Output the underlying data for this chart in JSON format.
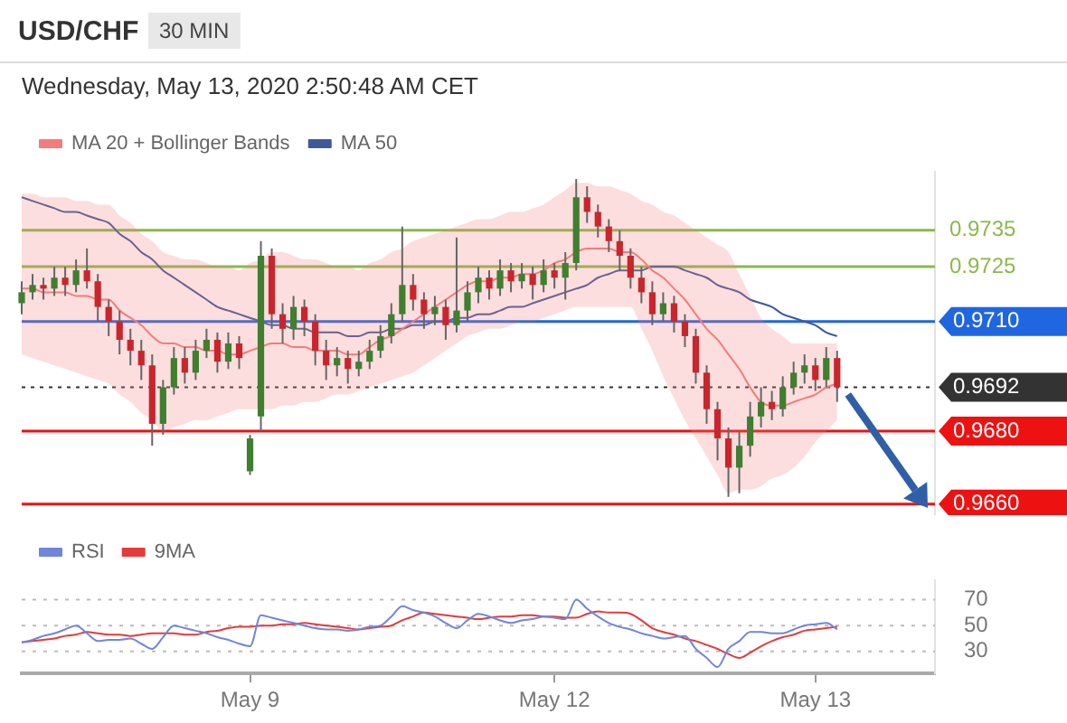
{
  "chart_data": [
    {
      "type": "candlestick",
      "title": "USD/CHF",
      "subtitle": "Wednesday, May 13, 2020 2:50:48 AM CET",
      "annotations": [
        "30 MIN"
      ],
      "categories": [
        null,
        null,
        null,
        null,
        null,
        null,
        null,
        null,
        null,
        null,
        null,
        null,
        null,
        null,
        null,
        null,
        null,
        null,
        null,
        null,
        null,
        null,
        null,
        null,
        null,
        null,
        null,
        null,
        null,
        null,
        null,
        null,
        null,
        null,
        null,
        null,
        null,
        null,
        null,
        null,
        null,
        null,
        null,
        null,
        null,
        null,
        null,
        null,
        null,
        null,
        null,
        null,
        null,
        null,
        null,
        null,
        null,
        null,
        null,
        null,
        null,
        null,
        null,
        null,
        null,
        null,
        null,
        null,
        null,
        null,
        null,
        null,
        null,
        null,
        null,
        null,
        null,
        null,
        null,
        null,
        null,
        null,
        null,
        null,
        null
      ],
      "ohlc": [
        [
          0.9715,
          0.9721,
          0.9712,
          0.9718
        ],
        [
          0.9718,
          0.9723,
          0.9716,
          0.972
        ],
        [
          0.972,
          0.9722,
          0.9716,
          0.9719
        ],
        [
          0.9719,
          0.9725,
          0.9717,
          0.9722
        ],
        [
          0.9722,
          0.9725,
          0.9717,
          0.972
        ],
        [
          0.972,
          0.9727,
          0.9718,
          0.9724
        ],
        [
          0.9724,
          0.973,
          0.9719,
          0.9721
        ],
        [
          0.9721,
          0.9723,
          0.971,
          0.9714
        ],
        [
          0.9714,
          0.9716,
          0.9706,
          0.971
        ],
        [
          0.971,
          0.9713,
          0.9701,
          0.9705
        ],
        [
          0.9705,
          0.9708,
          0.9698,
          0.9702
        ],
        [
          0.9702,
          0.9705,
          0.9694,
          0.9698
        ],
        [
          0.9698,
          0.9701,
          0.9676,
          0.9682
        ],
        [
          0.9682,
          0.9694,
          0.9679,
          0.9692
        ],
        [
          0.9692,
          0.9703,
          0.969,
          0.97
        ],
        [
          0.97,
          0.9703,
          0.9693,
          0.9696
        ],
        [
          0.9696,
          0.9705,
          0.9694,
          0.9702
        ],
        [
          0.9702,
          0.9708,
          0.97,
          0.9705
        ],
        [
          0.9705,
          0.9707,
          0.9696,
          0.9699
        ],
        [
          0.9699,
          0.9707,
          0.9697,
          0.9704
        ],
        [
          0.9704,
          0.9706,
          0.9697,
          0.97
        ],
        [
          0.9669,
          0.9679,
          0.9668,
          0.9678
        ],
        [
          0.9684,
          0.9732,
          0.968,
          0.9728
        ],
        [
          0.9728,
          0.973,
          0.9708,
          0.9712
        ],
        [
          0.9712,
          0.9715,
          0.9704,
          0.9708
        ],
        [
          0.9708,
          0.9717,
          0.9705,
          0.9714
        ],
        [
          0.9714,
          0.9716,
          0.9706,
          0.971
        ],
        [
          0.971,
          0.9712,
          0.9698,
          0.9702
        ],
        [
          0.9702,
          0.9705,
          0.9694,
          0.9698
        ],
        [
          0.9698,
          0.9703,
          0.9695,
          0.97
        ],
        [
          0.97,
          0.9702,
          0.9693,
          0.9697
        ],
        [
          0.9697,
          0.9702,
          0.9695,
          0.9699
        ],
        [
          0.9699,
          0.9705,
          0.9697,
          0.9702
        ],
        [
          0.9702,
          0.9709,
          0.97,
          0.9706
        ],
        [
          0.9706,
          0.9715,
          0.9704,
          0.9712
        ],
        [
          0.9712,
          0.9736,
          0.971,
          0.972
        ],
        [
          0.972,
          0.9723,
          0.9713,
          0.9716
        ],
        [
          0.9716,
          0.9718,
          0.9708,
          0.9712
        ],
        [
          0.9712,
          0.9717,
          0.9709,
          0.9714
        ],
        [
          0.9714,
          0.9716,
          0.9705,
          0.9709
        ],
        [
          0.9709,
          0.9733,
          0.9707,
          0.9713
        ],
        [
          0.9713,
          0.9721,
          0.971,
          0.9718
        ],
        [
          0.9718,
          0.9725,
          0.9715,
          0.9722
        ],
        [
          0.9722,
          0.9724,
          0.9716,
          0.9719
        ],
        [
          0.9719,
          0.9727,
          0.9717,
          0.9724
        ],
        [
          0.9724,
          0.9726,
          0.9718,
          0.9721
        ],
        [
          0.9721,
          0.9726,
          0.9719,
          0.9723
        ],
        [
          0.9723,
          0.9725,
          0.9716,
          0.972
        ],
        [
          0.972,
          0.9727,
          0.9718,
          0.9724
        ],
        [
          0.9724,
          0.9726,
          0.9719,
          0.9722
        ],
        [
          0.9722,
          0.9729,
          0.9716,
          0.9726
        ],
        [
          0.9726,
          0.9749,
          0.9724,
          0.9744
        ],
        [
          0.9744,
          0.9747,
          0.9737,
          0.974
        ],
        [
          0.974,
          0.9742,
          0.9733,
          0.9736
        ],
        [
          0.9736,
          0.9738,
          0.9729,
          0.9732
        ],
        [
          0.9732,
          0.9735,
          0.9724,
          0.9728
        ],
        [
          0.9728,
          0.973,
          0.9719,
          0.9722
        ],
        [
          0.9722,
          0.9725,
          0.9715,
          0.9718
        ],
        [
          0.9718,
          0.9721,
          0.9709,
          0.9712
        ],
        [
          0.9712,
          0.9718,
          0.971,
          0.9715
        ],
        [
          0.9715,
          0.9717,
          0.9707,
          0.971
        ],
        [
          0.971,
          0.9712,
          0.9703,
          0.9706
        ],
        [
          0.9706,
          0.9708,
          0.9693,
          0.9696
        ],
        [
          0.9696,
          0.9698,
          0.9682,
          0.9686
        ],
        [
          0.9686,
          0.9688,
          0.9672,
          0.9678
        ],
        [
          0.9678,
          0.9681,
          0.9662,
          0.967
        ],
        [
          0.967,
          0.968,
          0.9663,
          0.9676
        ],
        [
          0.9676,
          0.9688,
          0.9673,
          0.9684
        ],
        [
          0.9684,
          0.9692,
          0.9681,
          0.9688
        ],
        [
          0.9688,
          0.9691,
          0.9683,
          0.9686
        ],
        [
          0.9686,
          0.9695,
          0.9684,
          0.9692
        ],
        [
          0.9692,
          0.9699,
          0.969,
          0.9696
        ],
        [
          0.9696,
          0.9701,
          0.9693,
          0.9698
        ],
        [
          0.9698,
          0.97,
          0.9691,
          0.9694
        ],
        [
          0.9694,
          0.9703,
          0.9692,
          0.97
        ],
        [
          0.97,
          0.9702,
          0.9688,
          0.9692
        ],
        null,
        null,
        null,
        null,
        null,
        null,
        null,
        null,
        null
      ],
      "series": [
        {
          "name": "MA 20 + Bollinger Bands",
          "type": "line",
          "color": "#f47c7c",
          "values": [
            0.9719,
            0.9719,
            0.9718,
            0.9718,
            0.9718,
            0.9717,
            0.9717,
            0.9716,
            0.9716,
            0.9713,
            0.9711,
            0.9709,
            0.9706,
            0.9704,
            0.9704,
            0.9703,
            0.9703,
            0.9702,
            0.9702,
            0.9701,
            0.9701,
            0.9702,
            0.9703,
            0.9704,
            0.9704,
            0.9703,
            0.9703,
            0.9702,
            0.9702,
            0.9702,
            0.9701,
            0.9701,
            0.9703,
            0.9705,
            0.9706,
            0.9708,
            0.971,
            0.9712,
            0.9714,
            0.9716,
            0.9718,
            0.972,
            0.9721,
            0.9721,
            0.9722,
            0.9722,
            0.9723,
            0.9723,
            0.9724,
            0.9726,
            0.9727,
            0.9729,
            0.973,
            0.973,
            0.973,
            0.9729,
            0.9729,
            0.9727,
            0.9724,
            0.9722,
            0.9719,
            0.9716,
            0.9712,
            0.9708,
            0.9705,
            0.9701,
            0.9697,
            0.9692,
            0.9688,
            0.9687,
            0.9687,
            0.9688,
            0.9689,
            0.969,
            0.9692,
            0.9693,
            null,
            null,
            null,
            null,
            null,
            null,
            null,
            null,
            null
          ],
          "upper": [
            0.9745,
            0.9745,
            0.9744,
            0.9744,
            0.9744,
            0.9743,
            0.9743,
            0.9742,
            0.9742,
            0.9739,
            0.9737,
            0.9734,
            0.9732,
            0.9729,
            0.9728,
            0.9727,
            0.9727,
            0.9726,
            0.9725,
            0.9725,
            0.9724,
            0.9726,
            0.9727,
            0.9729,
            0.9729,
            0.9728,
            0.9727,
            0.9727,
            0.9726,
            0.9725,
            0.9725,
            0.9724,
            0.9726,
            0.9727,
            0.9729,
            0.973,
            0.9732,
            0.9733,
            0.9734,
            0.9735,
            0.9736,
            0.9737,
            0.9738,
            0.9738,
            0.9739,
            0.974,
            0.974,
            0.9741,
            0.9742,
            0.9744,
            0.9746,
            0.9748,
            0.9748,
            0.9747,
            0.9747,
            0.9746,
            0.9745,
            0.9743,
            0.9742,
            0.974,
            0.9739,
            0.9737,
            0.9735,
            0.9733,
            0.9731,
            0.9729,
            0.9723,
            0.9717,
            0.9711,
            0.9708,
            0.9706,
            0.9704,
            0.9704,
            0.9704,
            0.9704,
            0.9704,
            null,
            null,
            null,
            null,
            null,
            null,
            null,
            null,
            null
          ],
          "lower": [
            0.9701,
            0.97,
            0.9699,
            0.9698,
            0.9697,
            0.9696,
            0.9695,
            0.9694,
            0.9693,
            0.969,
            0.9688,
            0.9685,
            0.9683,
            0.968,
            0.9681,
            0.9682,
            0.9683,
            0.9683,
            0.9684,
            0.9685,
            0.9686,
            0.9686,
            0.9686,
            0.9686,
            0.9687,
            0.9687,
            0.9688,
            0.9688,
            0.9689,
            0.969,
            0.969,
            0.9691,
            0.9692,
            0.9693,
            0.9694,
            0.9695,
            0.9696,
            0.9698,
            0.97,
            0.9702,
            0.9704,
            0.9706,
            0.9707,
            0.9708,
            0.9708,
            0.9709,
            0.971,
            0.971,
            0.9711,
            0.9712,
            0.9713,
            0.9714,
            0.9714,
            0.9714,
            0.9714,
            0.9714,
            0.9714,
            0.9708,
            0.9702,
            0.9695,
            0.9689,
            0.9683,
            0.9678,
            0.9673,
            0.9668,
            0.9663,
            0.9664,
            0.9664,
            0.9665,
            0.9667,
            0.9668,
            0.967,
            0.9673,
            0.9677,
            0.968,
            0.9683,
            null,
            null,
            null,
            null,
            null,
            null,
            null,
            null,
            null
          ]
        },
        {
          "name": "MA 50",
          "type": "line",
          "color": "#3d5a98",
          "values": [
            0.9744,
            0.9743,
            0.9742,
            0.9741,
            0.974,
            0.974,
            0.9739,
            0.9738,
            0.9737,
            0.9734,
            0.9732,
            0.9729,
            0.9727,
            0.9724,
            0.9722,
            0.972,
            0.9718,
            0.9716,
            0.9714,
            0.9713,
            0.9712,
            0.9711,
            0.971,
            0.9709,
            0.9709,
            0.9708,
            0.9708,
            0.9707,
            0.9707,
            0.9707,
            0.9706,
            0.9706,
            0.9707,
            0.9707,
            0.9708,
            0.9708,
            0.9709,
            0.9709,
            0.971,
            0.971,
            0.9711,
            0.9711,
            0.9712,
            0.9712,
            0.9713,
            0.9714,
            0.9714,
            0.9715,
            0.9716,
            0.9717,
            0.9718,
            0.9719,
            0.972,
            0.9722,
            0.9723,
            0.9724,
            0.9724,
            0.9724,
            0.9725,
            0.9725,
            0.9725,
            0.9724,
            0.9723,
            0.9722,
            0.972,
            0.9719,
            0.9718,
            0.9716,
            0.9715,
            0.9714,
            0.9712,
            0.9711,
            0.971,
            0.9709,
            0.9707,
            0.9706,
            null,
            null,
            null,
            null,
            null,
            null,
            null,
            null,
            null
          ]
        }
      ],
      "ref_lines": [
        {
          "axis": "y",
          "value": 0.9735,
          "label": "0.9735",
          "color": "#8cb84c"
        },
        {
          "axis": "y",
          "value": 0.9725,
          "label": "0.9725",
          "color": "#8cb84c"
        },
        {
          "axis": "y",
          "value": 0.971,
          "label": "0.9710",
          "color": "#1f66e0"
        },
        {
          "axis": "y",
          "value": 0.9692,
          "label": "0.9692",
          "color": "#333333",
          "line_style": "dotted"
        },
        {
          "axis": "y",
          "value": 0.968,
          "label": "0.9680",
          "color": "#ee1111"
        },
        {
          "axis": "y",
          "value": 0.966,
          "label": "0.9660",
          "color": "#ee1111"
        }
      ],
      "ylim": [
        0.9657,
        0.9751
      ],
      "tick_labels": false,
      "legend": "top left"
    },
    {
      "type": "line",
      "categories": [
        null,
        null,
        null,
        null,
        null,
        null,
        null,
        null,
        null,
        null,
        null,
        null,
        null,
        null,
        null,
        null,
        null,
        null,
        null,
        null,
        null,
        "May 9",
        null,
        null,
        null,
        null,
        null,
        null,
        null,
        null,
        null,
        null,
        null,
        null,
        null,
        null,
        null,
        null,
        null,
        null,
        null,
        null,
        null,
        null,
        null,
        null,
        null,
        null,
        null,
        "May 12",
        null,
        null,
        null,
        null,
        null,
        null,
        null,
        null,
        null,
        null,
        null,
        null,
        null,
        null,
        null,
        null,
        null,
        null,
        null,
        null,
        null,
        null,
        null,
        "May 13",
        null,
        null,
        null,
        null,
        null,
        null,
        null,
        null,
        null,
        null,
        null
      ],
      "series": [
        {
          "name": "RSI",
          "color": "#6f86dc",
          "values": [
            37,
            39,
            42,
            44,
            47,
            50,
            44,
            38,
            39,
            39,
            40,
            36,
            32,
            41,
            50,
            48,
            46,
            44,
            41,
            39,
            36,
            34,
            58,
            56,
            54,
            52,
            50,
            48,
            47,
            47,
            46,
            47,
            49,
            50,
            57,
            65,
            62,
            60,
            57,
            52,
            48,
            54,
            59,
            57,
            54,
            52,
            54,
            55,
            57,
            56,
            55,
            70,
            63,
            57,
            52,
            49,
            47,
            44,
            42,
            40,
            41,
            42,
            32,
            25,
            18,
            32,
            38,
            45,
            45,
            44,
            44,
            47,
            50,
            51,
            52,
            47,
            null,
            null,
            null,
            null,
            null,
            null,
            null,
            null,
            null
          ]
        },
        {
          "name": "9MA",
          "color": "#e33b3b",
          "values": [
            37,
            38,
            39,
            40,
            42,
            43,
            45,
            44,
            43,
            43,
            42,
            43,
            44,
            44,
            44,
            43,
            43,
            45,
            46,
            48,
            49,
            49,
            50,
            50,
            51,
            51,
            52,
            51,
            50,
            49,
            48,
            47,
            48,
            49,
            50,
            54,
            57,
            60,
            59,
            58,
            57,
            56,
            55,
            56,
            57,
            57,
            58,
            58,
            57,
            57,
            56,
            56,
            59,
            61,
            60,
            60,
            59,
            54,
            48,
            45,
            43,
            40,
            38,
            35,
            32,
            28,
            25,
            29,
            34,
            38,
            41,
            43,
            46,
            47,
            48,
            49,
            null,
            null,
            null,
            null,
            null,
            null,
            null,
            null,
            null
          ]
        }
      ],
      "ylim": [
        13,
        85
      ],
      "yticks": [
        30,
        50,
        70
      ],
      "grid": "y",
      "legend": "top left"
    }
  ]
}
